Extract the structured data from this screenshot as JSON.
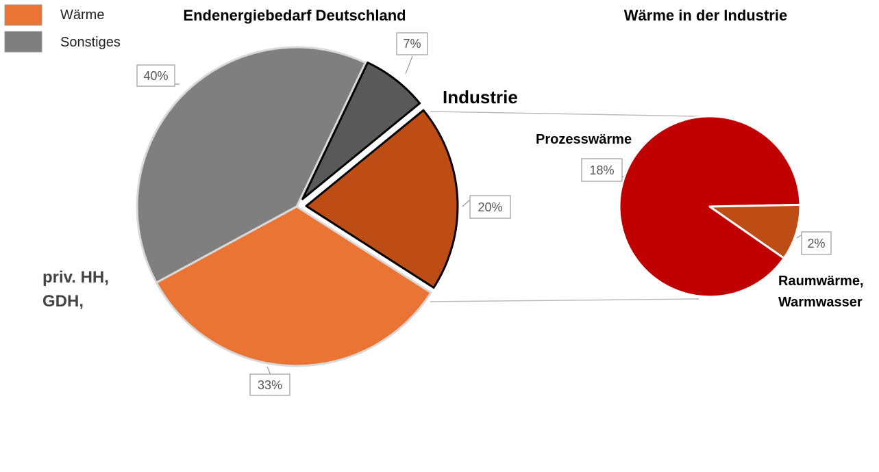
{
  "chart_data": [
    {
      "type": "pie",
      "title": "Endenergiebedarf Deutschland",
      "legend": {
        "position": "top-left",
        "entries": [
          {
            "label": "Wärme",
            "color": "#ea7434"
          },
          {
            "label": "Sonstiges",
            "color": "#7f7f7f"
          }
        ]
      },
      "slices": [
        {
          "label": "Industrie",
          "value": 7,
          "data_label": "7%",
          "color": "#595959",
          "exploded": true
        },
        {
          "label": "Industrie",
          "value": 20,
          "data_label": "20%",
          "color": "#be4d15",
          "exploded": true
        },
        {
          "label": "priv. HH, GDH,",
          "value": 33,
          "data_label": "33%",
          "color": "#ea7434",
          "exploded": false
        },
        {
          "label": "",
          "value": 40,
          "data_label": "40%",
          "color": "#7f7f7f",
          "exploded": false
        }
      ],
      "annotations": [
        "Industrie",
        "priv. HH,",
        "GDH,"
      ]
    },
    {
      "type": "pie",
      "title": "Wärme in der Industrie",
      "slices": [
        {
          "label": "Raumwärme, Warmwasser",
          "value": 2,
          "data_label": "2%",
          "color": "#be4d15"
        },
        {
          "label": "Prozesswärme",
          "value": 18,
          "data_label": "18%",
          "color": "#c00000"
        }
      ],
      "annotations": [
        "Prozesswärme",
        "Raumwärme,",
        "Warmwasser"
      ]
    }
  ]
}
